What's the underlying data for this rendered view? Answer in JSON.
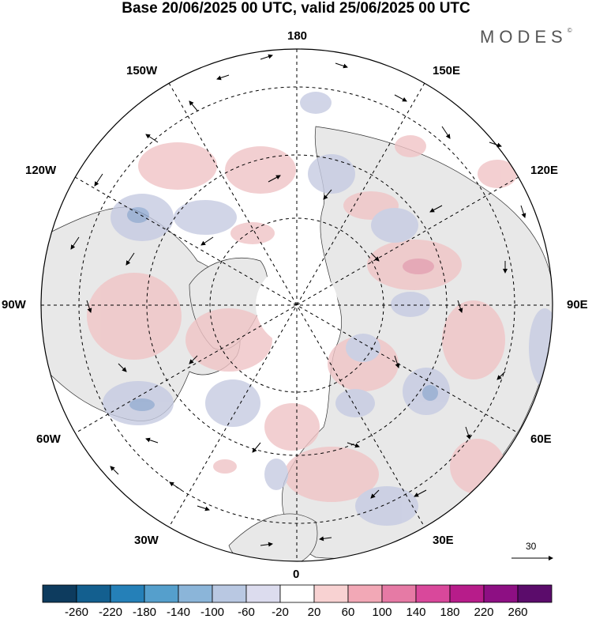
{
  "title": "Base 20/06/2025 00 UTC, valid 25/06/2025 00 UTC",
  "brand": "MODES",
  "brand_mark": "©",
  "longitude_labels": {
    "lon_180": "180",
    "lon_150w": "150W",
    "lon_150e": "150E",
    "lon_120w": "120W",
    "lon_120e": "120E",
    "lon_90w": "90W",
    "lon_90e": "90E",
    "lon_60w": "60W",
    "lon_60e": "60E",
    "lon_30w": "30W",
    "lon_30e": "30E",
    "lon_0": "0"
  },
  "reference_vector": {
    "label": "30"
  },
  "colorbar": {
    "ticks": [
      "-260",
      "-220",
      "-180",
      "-140",
      "-100",
      "-60",
      "-20",
      "20",
      "60",
      "100",
      "140",
      "180",
      "220",
      "260"
    ],
    "colors": [
      "#0d3b5e",
      "#135f8f",
      "#2580b8",
      "#559fcc",
      "#8bb5d9",
      "#b9c8e2",
      "#dcdcee",
      "#ffffff",
      "#f8d2d2",
      "#f2a8b6",
      "#e67aa5",
      "#d9489b",
      "#b71c8a",
      "#8d0f83",
      "#5b0c6b"
    ]
  },
  "map_colors": {
    "land": "#e8e8e8",
    "ocean": "#ffffff",
    "positive": "#f0c4c6",
    "negative": "#c6cbe2"
  }
}
